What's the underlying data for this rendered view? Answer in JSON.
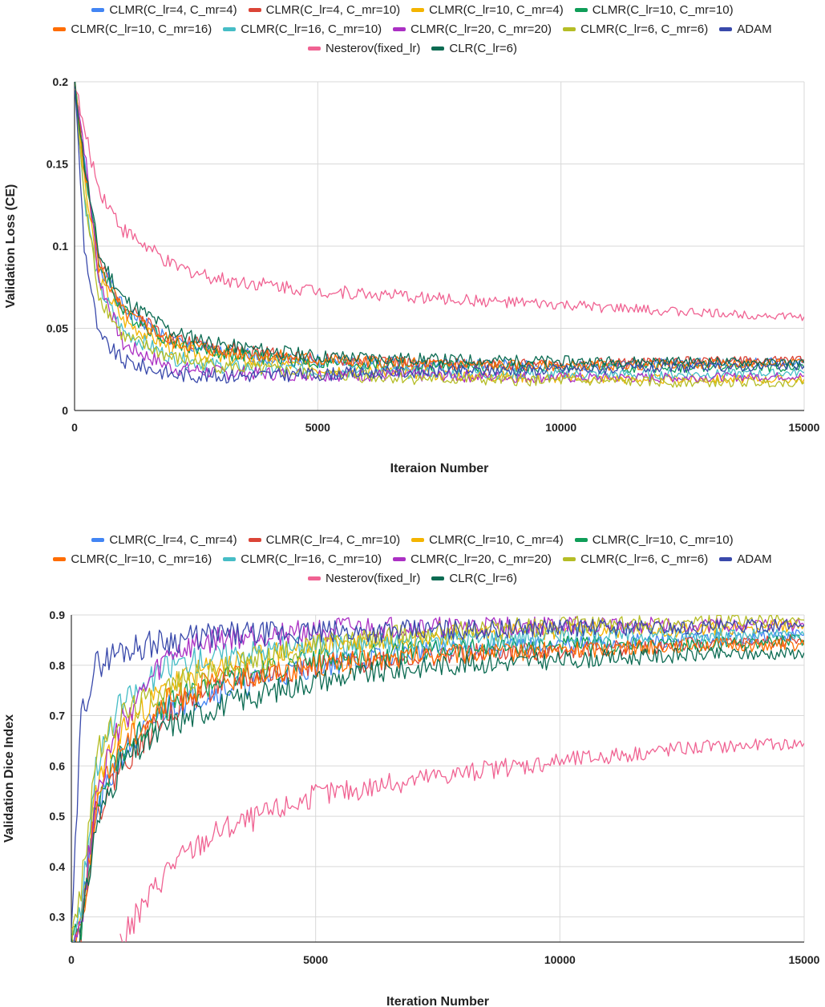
{
  "series_legend": [
    {
      "name": "CLMR(C_lr=4,  C_mr=4)",
      "color": "#4285f4"
    },
    {
      "name": "CLMR(C_lr=4,  C_mr=10)",
      "color": "#db4437"
    },
    {
      "name": "CLMR(C_lr=10,  C_mr=4)",
      "color": "#f4b400"
    },
    {
      "name": "CLMR(C_lr=10,  C_mr=10)",
      "color": "#0f9d58"
    },
    {
      "name": "CLMR(C_lr=10,  C_mr=16)",
      "color": "#ff6d01"
    },
    {
      "name": "CLMR(C_lr=16,  C_mr=10)",
      "color": "#46bdc6"
    },
    {
      "name": "CLMR(C_lr=20,  C_mr=20)",
      "color": "#ab30c4"
    },
    {
      "name": "CLMR(C_lr=6,  C_mr=6)",
      "color": "#b5bd26"
    },
    {
      "name": "ADAM",
      "color": "#3949ab"
    },
    {
      "name": "Nesterov(fixed_lr)",
      "color": "#f06292"
    },
    {
      "name": "CLR(C_lr=6)",
      "color": "#0b6b52"
    }
  ],
  "chart_data": [
    {
      "type": "line",
      "title": "",
      "xlabel": "Iteraion Number",
      "ylabel": "Validation Loss (CE)",
      "xlim": [
        0,
        15000
      ],
      "ylim": [
        0,
        0.2
      ],
      "xticks": [
        0,
        5000,
        10000,
        15000
      ],
      "yticks": [
        0,
        0.05,
        0.1,
        0.15,
        0.2
      ],
      "xtick_labels": [
        "0",
        "5000",
        "10000",
        "15000"
      ],
      "ytick_labels": [
        "0",
        "0.05",
        "0.1",
        "0.15",
        "0.2"
      ],
      "x": [
        0,
        200,
        500,
        1000,
        2000,
        3000,
        5000,
        7500,
        10000,
        12500,
        15000
      ],
      "series": [
        {
          "name": "CLMR(C_lr=4,  C_mr=4)",
          "values": [
            0.2,
            0.15,
            0.09,
            0.062,
            0.042,
            0.035,
            0.03,
            0.028,
            0.027,
            0.029,
            0.03
          ]
        },
        {
          "name": "CLMR(C_lr=4,  C_mr=10)",
          "values": [
            0.2,
            0.15,
            0.09,
            0.063,
            0.044,
            0.038,
            0.031,
            0.028,
            0.028,
            0.03,
            0.031
          ]
        },
        {
          "name": "CLMR(C_lr=10,  C_mr=4)",
          "values": [
            0.2,
            0.14,
            0.08,
            0.055,
            0.038,
            0.032,
            0.026,
            0.022,
            0.02,
            0.019,
            0.019
          ]
        },
        {
          "name": "CLMR(C_lr=10,  C_mr=10)",
          "values": [
            0.2,
            0.15,
            0.09,
            0.06,
            0.042,
            0.035,
            0.029,
            0.027,
            0.026,
            0.026,
            0.026
          ]
        },
        {
          "name": "CLMR(C_lr=10,  C_mr=16)",
          "values": [
            0.2,
            0.15,
            0.088,
            0.06,
            0.042,
            0.036,
            0.031,
            0.028,
            0.027,
            0.028,
            0.029
          ]
        },
        {
          "name": "CLMR(C_lr=16,  C_mr=10)",
          "values": [
            0.2,
            0.13,
            0.075,
            0.048,
            0.032,
            0.027,
            0.024,
            0.023,
            0.022,
            0.022,
            0.023
          ]
        },
        {
          "name": "CLMR(C_lr=20,  C_mr=20)",
          "values": [
            0.2,
            0.16,
            0.08,
            0.04,
            0.026,
            0.023,
            0.022,
            0.021,
            0.02,
            0.02,
            0.021
          ]
        },
        {
          "name": "CLMR(C_lr=6,  C_mr=6)",
          "values": [
            0.2,
            0.13,
            0.07,
            0.045,
            0.032,
            0.027,
            0.022,
            0.019,
            0.018,
            0.017,
            0.017
          ]
        },
        {
          "name": "ADAM",
          "values": [
            0.2,
            0.1,
            0.045,
            0.03,
            0.022,
            0.021,
            0.022,
            0.024,
            0.025,
            0.026,
            0.027
          ]
        },
        {
          "name": "Nesterov(fixed_lr)",
          "values": [
            0.2,
            0.17,
            0.135,
            0.11,
            0.088,
            0.08,
            0.073,
            0.068,
            0.064,
            0.06,
            0.057
          ]
        },
        {
          "name": "CLR(C_lr=6)",
          "values": [
            0.2,
            0.15,
            0.095,
            0.068,
            0.048,
            0.04,
            0.033,
            0.031,
            0.03,
            0.03,
            0.029
          ]
        }
      ]
    },
    {
      "type": "line",
      "title": "",
      "xlabel": "Iteration Number",
      "ylabel": "Validation Dice Index",
      "xlim": [
        0,
        15000
      ],
      "ylim": [
        0.25,
        0.9
      ],
      "xticks": [
        0,
        5000,
        10000,
        15000
      ],
      "yticks": [
        0.3,
        0.4,
        0.5,
        0.6,
        0.7,
        0.8,
        0.9
      ],
      "xtick_labels": [
        "0",
        "5000",
        "10000",
        "15000"
      ],
      "ytick_labels": [
        "0.3",
        "0.4",
        "0.5",
        "0.6",
        "0.7",
        "0.8",
        "0.9"
      ],
      "x": [
        0,
        200,
        500,
        1000,
        2000,
        3000,
        5000,
        7500,
        10000,
        12500,
        15000
      ],
      "series": [
        {
          "name": "CLMR(C_lr=4,  C_mr=4)",
          "values": [
            0.25,
            0.3,
            0.5,
            0.62,
            0.72,
            0.75,
            0.8,
            0.83,
            0.84,
            0.85,
            0.86
          ]
        },
        {
          "name": "CLMR(C_lr=4,  C_mr=10)",
          "values": [
            0.25,
            0.28,
            0.5,
            0.6,
            0.71,
            0.76,
            0.8,
            0.82,
            0.83,
            0.84,
            0.85
          ]
        },
        {
          "name": "CLMR(C_lr=10,  C_mr=4)",
          "values": [
            0.25,
            0.3,
            0.55,
            0.67,
            0.76,
            0.8,
            0.84,
            0.86,
            0.87,
            0.87,
            0.88
          ]
        },
        {
          "name": "CLMR(C_lr=10,  C_mr=10)",
          "values": [
            0.25,
            0.28,
            0.52,
            0.63,
            0.72,
            0.77,
            0.81,
            0.83,
            0.84,
            0.84,
            0.85
          ]
        },
        {
          "name": "CLMR(C_lr=10,  C_mr=16)",
          "values": [
            0.25,
            0.28,
            0.52,
            0.64,
            0.73,
            0.77,
            0.8,
            0.82,
            0.83,
            0.84,
            0.84
          ]
        },
        {
          "name": "CLMR(C_lr=16,  C_mr=10)",
          "values": [
            0.25,
            0.32,
            0.6,
            0.72,
            0.8,
            0.82,
            0.84,
            0.85,
            0.86,
            0.86,
            0.86
          ]
        },
        {
          "name": "CLMR(C_lr=20,  C_mr=20)",
          "values": [
            0.25,
            0.28,
            0.55,
            0.68,
            0.82,
            0.85,
            0.87,
            0.875,
            0.88,
            0.88,
            0.88
          ]
        },
        {
          "name": "CLMR(C_lr=6,  C_mr=6)",
          "values": [
            0.25,
            0.35,
            0.62,
            0.7,
            0.76,
            0.79,
            0.84,
            0.87,
            0.88,
            0.885,
            0.89
          ]
        },
        {
          "name": "ADAM",
          "values": [
            0.25,
            0.7,
            0.8,
            0.83,
            0.85,
            0.86,
            0.865,
            0.87,
            0.875,
            0.875,
            0.88
          ]
        },
        {
          "name": "Nesterov(fixed_lr)",
          "values": [
            null,
            null,
            null,
            0.25,
            0.4,
            0.47,
            0.54,
            0.58,
            0.61,
            0.635,
            0.645
          ]
        },
        {
          "name": "CLR(C_lr=6)",
          "values": [
            0.25,
            0.27,
            0.48,
            0.6,
            0.68,
            0.72,
            0.77,
            0.8,
            0.81,
            0.82,
            0.825
          ]
        }
      ]
    }
  ]
}
